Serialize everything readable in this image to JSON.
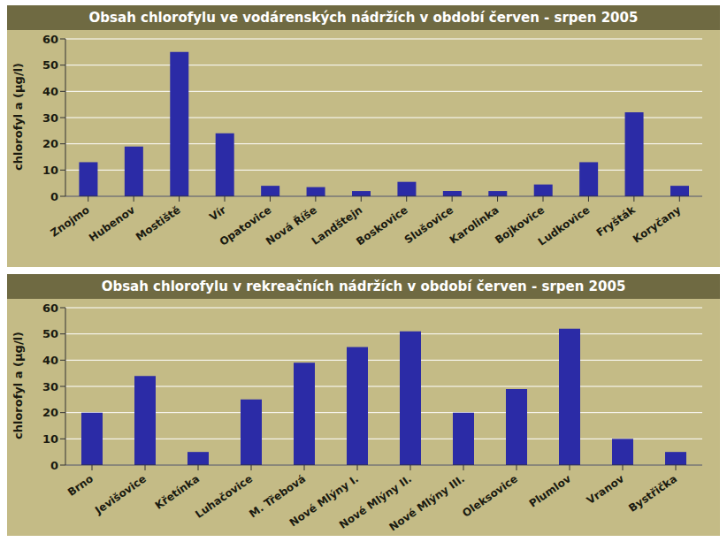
{
  "chart_data": [
    {
      "type": "bar",
      "title": "Obsah chlorofylu ve vodárenských nádržích v období červen - srpen 2005",
      "y_label": "chlorofyl a (µg/l)",
      "categories": [
        "Znojmo",
        "Hubenov",
        "Mostiště",
        "Vír",
        "Opatovice",
        "Nová Říše",
        "Landštejn",
        "Boskovice",
        "Slušovice",
        "Karolinka",
        "Bojkovice",
        "Ludkovice",
        "Fryšták",
        "Koryčany"
      ],
      "values": [
        13,
        19,
        55,
        24,
        4,
        3.5,
        2,
        5.5,
        2,
        2,
        4.5,
        13,
        32,
        4
      ],
      "color": "#2b2ba6",
      "ylim": [
        0,
        60
      ],
      "yticks": [
        0,
        10,
        20,
        30,
        40,
        50,
        60
      ],
      "grid": true
    },
    {
      "type": "bar",
      "title": "Obsah chlorofylu v rekreačních nádržích v období červen - srpen 2005",
      "y_label": "chlorofyl a (µg/l)",
      "categories": [
        "Brno",
        "Jevišovice",
        "Křetínka",
        "Luhačovice",
        "M. Třebová",
        "Nové Mlýny I.",
        "Nové Mlýny II.",
        "Nové Mlýny III.",
        "Oleksovice",
        "Plumlov",
        "Vranov",
        "Bystřička"
      ],
      "values": [
        20,
        34,
        5,
        25,
        39,
        45,
        51,
        20,
        29,
        52,
        10,
        5
      ],
      "color": "#2b2ba6",
      "ylim": [
        0,
        60
      ],
      "yticks": [
        0,
        10,
        20,
        30,
        40,
        50,
        60
      ],
      "grid": true
    }
  ]
}
